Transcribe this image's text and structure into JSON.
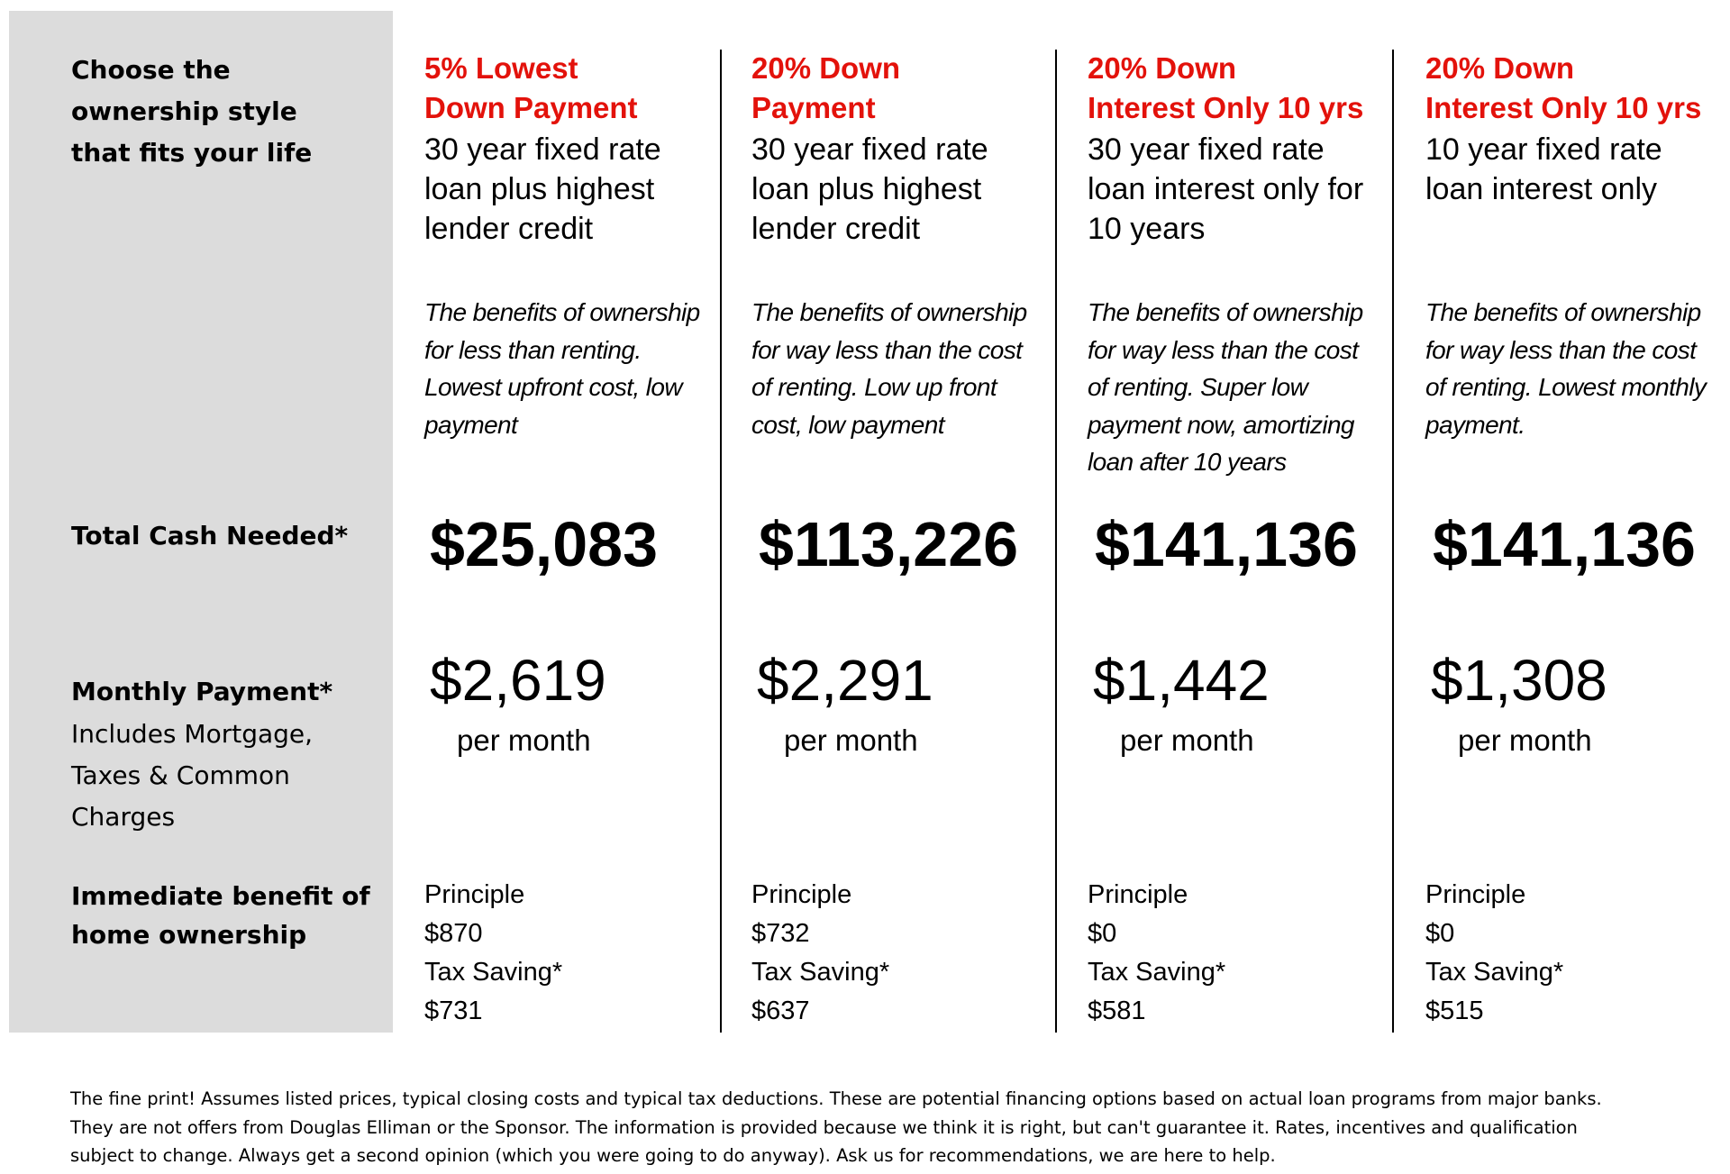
{
  "sidebar": {
    "intro": [
      "Choose the",
      "ownership style",
      "that fits your life"
    ],
    "total_cash": "Total Cash Needed*",
    "monthly": "Monthly Payment*",
    "monthly_note": [
      "Includes Mortgage,",
      "Taxes & Common",
      "Charges"
    ],
    "benefit": [
      "Immediate benefit of",
      "home ownership"
    ]
  },
  "options": [
    {
      "title": [
        "5% Lowest",
        "Down Payment"
      ],
      "subtitle": [
        "30 year fixed rate",
        "loan plus highest",
        "lender credit"
      ],
      "description": [
        "The benefits of ownership",
        "for less than renting.",
        "Lowest upfront cost, low",
        "payment"
      ],
      "total_cash": "$25,083",
      "monthly_payment": "$2,619",
      "per_month": "per month",
      "benefits": [
        "Principle",
        "$870",
        "Tax Saving*",
        "$731"
      ]
    },
    {
      "title": [
        "20% Down",
        "Payment"
      ],
      "subtitle": [
        "30 year fixed rate",
        "loan plus highest",
        "lender credit"
      ],
      "description": [
        "The benefits of ownership",
        "for way less than the cost",
        "of renting. Low up front",
        "cost, low payment"
      ],
      "total_cash": "$113,226",
      "monthly_payment": "$2,291",
      "per_month": "per month",
      "benefits": [
        "Principle",
        "$732",
        "Tax Saving*",
        "$637"
      ]
    },
    {
      "title": [
        "20% Down",
        "Interest Only 10 yrs"
      ],
      "subtitle": [
        "30 year fixed rate",
        "loan interest only for",
        "10 years"
      ],
      "description": [
        "The benefits of ownership",
        "for way less than the cost",
        "of renting. Super low",
        "payment now, amortizing",
        "loan after 10 years"
      ],
      "total_cash": "$141,136",
      "monthly_payment": "$1,442",
      "per_month": "per month",
      "benefits": [
        "Principle",
        "$0",
        "Tax Saving*",
        "$581"
      ]
    },
    {
      "title": [
        "20% Down",
        "Interest Only 10 yrs"
      ],
      "subtitle": [
        "10 year fixed rate",
        "loan interest only"
      ],
      "description": [
        "The benefits of ownership",
        "for way less than the cost",
        "of renting. Lowest monthly",
        "payment."
      ],
      "total_cash": "$141,136",
      "monthly_payment": "$1,308",
      "per_month": "per month",
      "benefits": [
        "Principle",
        "$0",
        "Tax Saving*",
        "$515"
      ]
    }
  ],
  "fine_print": "The fine print! Assumes listed prices, typical closing costs and typical tax deductions. These are potential financing options based on actual loan programs from major banks. They are not offers from Douglas Elliman or the Sponsor. The information is provided because we think it is right, but can't guarantee it. Rates, incentives and qualification subject to change. Always get a second opinion (which you were going to do anyway). Ask us for recommendations, we are here to help."
}
